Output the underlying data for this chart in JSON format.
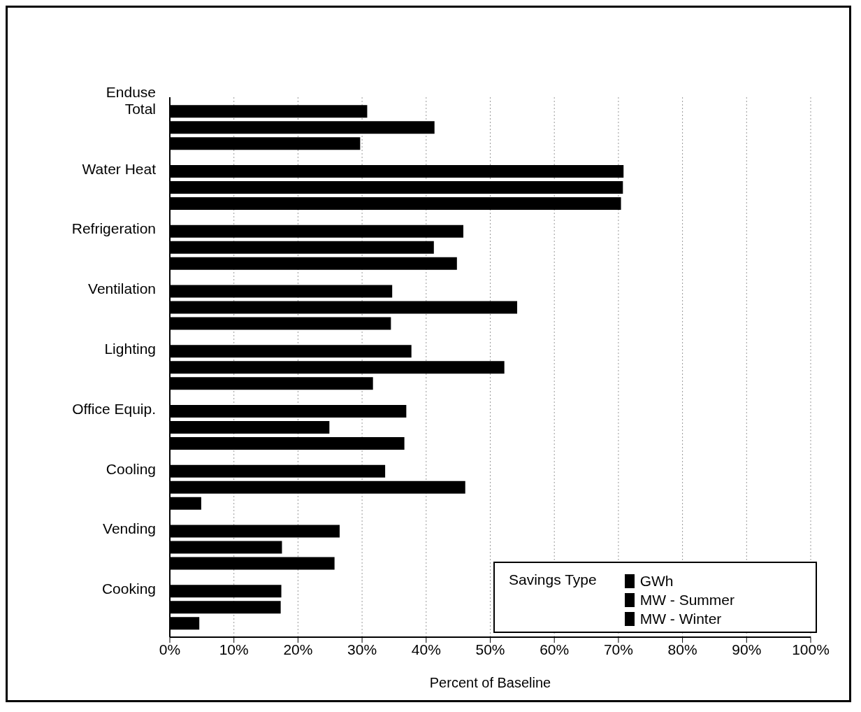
{
  "chart_data": {
    "type": "bar",
    "orientation": "horizontal",
    "categories": [
      "Enduse\nTotal",
      "Water Heat",
      "Refrigeration",
      "Ventilation",
      "Lighting",
      "Office Equip.",
      "Cooling",
      "Vending",
      "Cooking"
    ],
    "series": [
      {
        "name": "GWh",
        "color": "#000000",
        "values": [
          30.8,
          70.8,
          45.8,
          34.7,
          37.7,
          36.9,
          33.6,
          26.5,
          17.4
        ]
      },
      {
        "name": "MW - Summer",
        "color": "#000000",
        "values": [
          41.3,
          70.7,
          41.2,
          54.2,
          52.2,
          24.9,
          46.1,
          17.5,
          17.3
        ]
      },
      {
        "name": "MW - Winter",
        "color": "#000000",
        "values": [
          29.7,
          70.4,
          44.8,
          34.5,
          31.7,
          36.6,
          4.9,
          25.7,
          4.6
        ]
      }
    ],
    "xlabel": "Percent of Baseline",
    "legend_title": "Savings Type",
    "xlim": [
      0,
      100
    ],
    "xticks": [
      {
        "value": 0,
        "label": "0%"
      },
      {
        "value": 10,
        "label": "10%"
      },
      {
        "value": 20,
        "label": "20%"
      },
      {
        "value": 30,
        "label": "30%"
      },
      {
        "value": 40,
        "label": "40%"
      },
      {
        "value": 50,
        "label": "50%"
      },
      {
        "value": 60,
        "label": "60%"
      },
      {
        "value": 70,
        "label": "70%"
      },
      {
        "value": 80,
        "label": "80%"
      },
      {
        "value": 90,
        "label": "90%"
      },
      {
        "value": 100,
        "label": "100%"
      }
    ],
    "grid": "x",
    "legend": "bottom right"
  }
}
